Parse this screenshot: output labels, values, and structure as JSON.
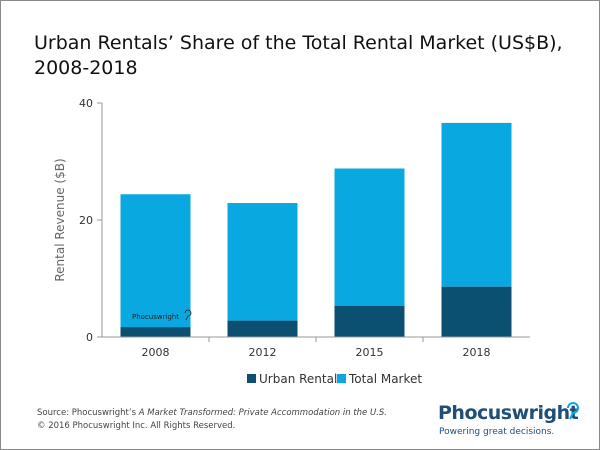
{
  "title_line1": "Urban Rentals’ Share of the Total Rental Market (US$B),",
  "title_line2": "2008-2018",
  "source_prefix": "Source: Phocuswright’s ",
  "source_title": "A Market Transformed: Private Accommodation in the U.S.",
  "copyright": "© 2016 Phocuswright Inc. All Rights Reserved.",
  "logo": {
    "name": "Phocuswright",
    "tagline": "Powering great decisions."
  },
  "watermark": "Phocuswright",
  "colors": {
    "urban": "#0b4f71",
    "total": "#0aa8e0",
    "axis": "#999999"
  },
  "chart_data": {
    "type": "bar",
    "stacked": true,
    "categories": [
      "2008",
      "2012",
      "2015",
      "2018"
    ],
    "series": [
      {
        "name": "Urban Rentals",
        "values": [
          1.7,
          2.8,
          5.3,
          8.6
        ]
      },
      {
        "name": "Total Market",
        "values": [
          24.4,
          22.9,
          28.8,
          36.6
        ]
      }
    ],
    "ylabel": "Rental Revenue ($B)",
    "ylim": [
      0,
      40
    ],
    "yticks": [
      0,
      20,
      40
    ],
    "legend": "bottom",
    "grid": false
  }
}
